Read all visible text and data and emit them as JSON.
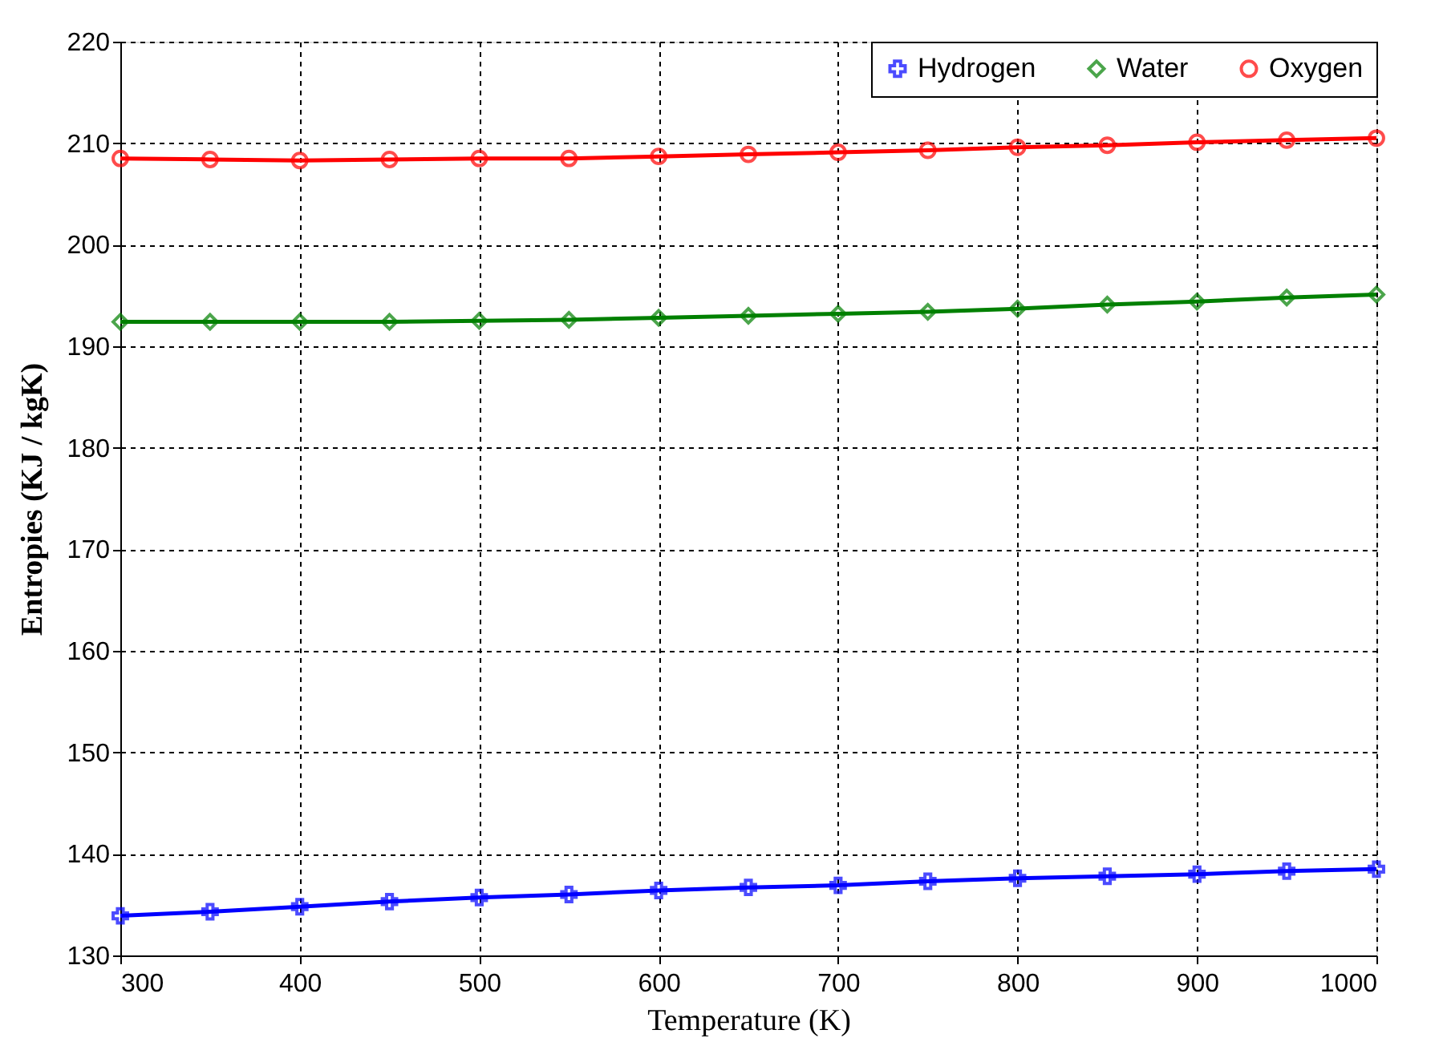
{
  "chart_data": {
    "type": "line",
    "xlabel": "Temperature (K)",
    "ylabel": "Entropies  (KJ / kgK)",
    "x": [
      300,
      350,
      400,
      450,
      500,
      550,
      600,
      650,
      700,
      750,
      800,
      850,
      900,
      950,
      1000
    ],
    "series": [
      {
        "name": "Hydrogen",
        "color": "#0000ff",
        "marker": "cross",
        "values": [
          133.9,
          134.3,
          134.8,
          135.3,
          135.7,
          136.0,
          136.4,
          136.7,
          136.9,
          137.3,
          137.6,
          137.8,
          138.0,
          138.3,
          138.5
        ]
      },
      {
        "name": "Water",
        "color": "#008000",
        "marker": "diamond",
        "values": [
          192.4,
          192.4,
          192.4,
          192.4,
          192.5,
          192.6,
          192.8,
          193.0,
          193.2,
          193.4,
          193.7,
          194.1,
          194.4,
          194.8,
          195.1
        ]
      },
      {
        "name": "Oxygen",
        "color": "#ff0000",
        "marker": "circle",
        "values": [
          208.5,
          208.4,
          208.3,
          208.4,
          208.5,
          208.5,
          208.7,
          208.9,
          209.1,
          209.3,
          209.6,
          209.8,
          210.1,
          210.3,
          210.5
        ]
      }
    ],
    "xlim": [
      300,
      1000
    ],
    "xticks": [
      300,
      400,
      500,
      600,
      700,
      800,
      900,
      1000
    ],
    "ylim": [
      130,
      220
    ],
    "yticks": [
      130,
      140,
      150,
      160,
      170,
      180,
      190,
      200,
      210,
      220
    ],
    "grid": true,
    "legend": "top right",
    "line_style": "solid"
  }
}
